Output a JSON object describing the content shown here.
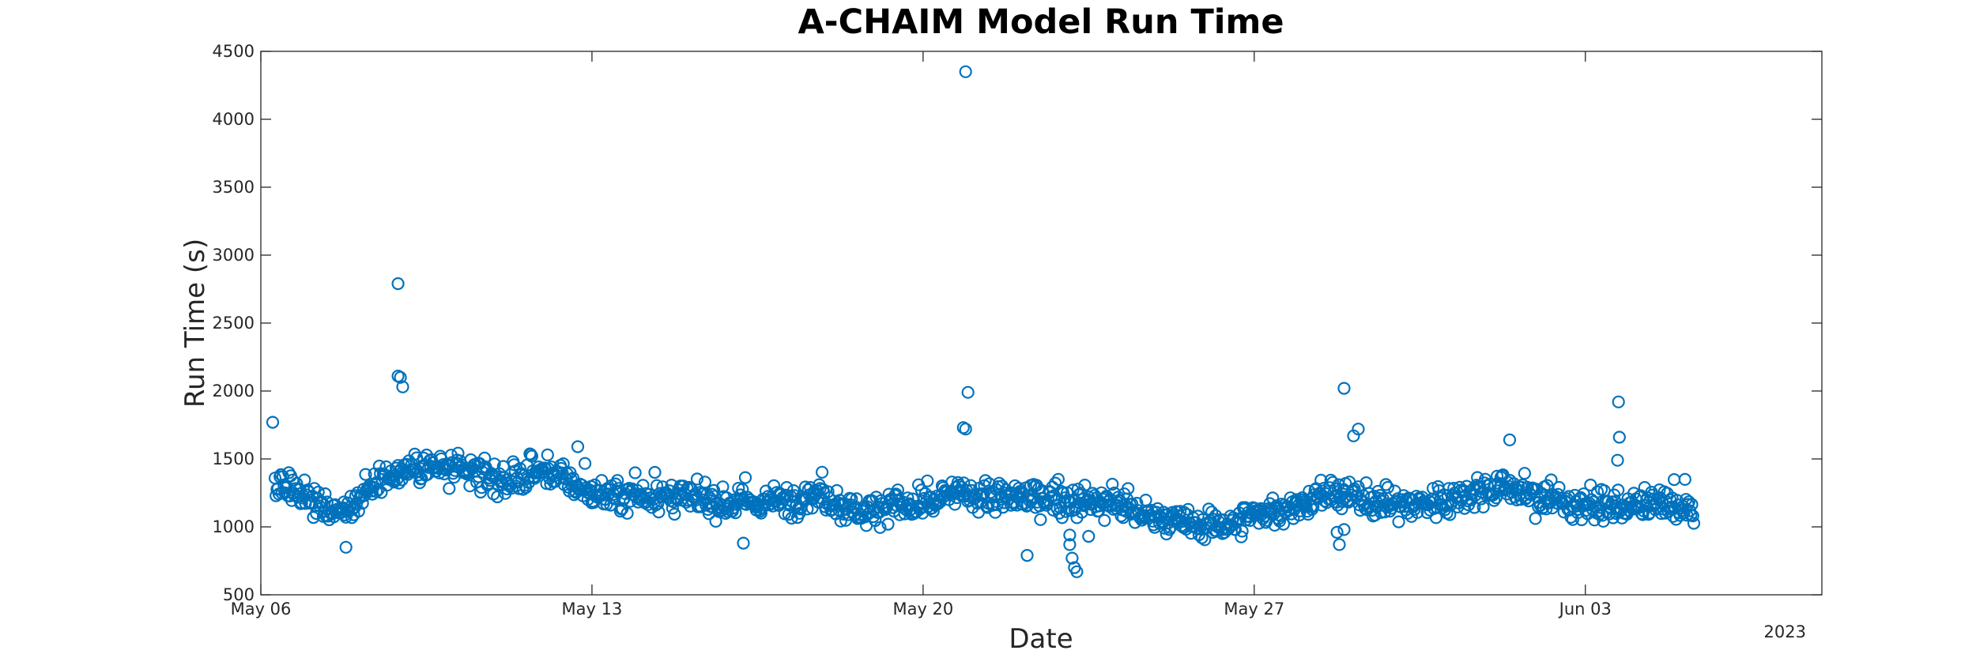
{
  "chart_data": {
    "type": "scatter",
    "title": "A-CHAIM Model Run Time",
    "xlabel": "Date",
    "ylabel": "Run Time (s)",
    "x_secondary_label": "2023",
    "x_unit": "days since May 06, 2023",
    "xlim": [
      0,
      33
    ],
    "ylim": [
      500,
      4500
    ],
    "x_ticks": [
      {
        "value": 0,
        "label": "May 06"
      },
      {
        "value": 7,
        "label": "May 13"
      },
      {
        "value": 14,
        "label": "May 20"
      },
      {
        "value": 21,
        "label": "May 27"
      },
      {
        "value": 28,
        "label": "Jun 03"
      }
    ],
    "y_ticks": [
      500,
      1000,
      1500,
      2000,
      2500,
      3000,
      3500,
      4000,
      4500
    ],
    "grid": false,
    "marker": "open-circle",
    "series_color": "#0072BD",
    "trend_anchors": [
      [
        0.3,
        1320
      ],
      [
        1.0,
        1200
      ],
      [
        1.5,
        1120
      ],
      [
        2.0,
        1160
      ],
      [
        2.6,
        1380
      ],
      [
        3.5,
        1450
      ],
      [
        4.5,
        1390
      ],
      [
        5.3,
        1330
      ],
      [
        6.0,
        1420
      ],
      [
        6.4,
        1360
      ],
      [
        6.8,
        1260
      ],
      [
        7.5,
        1220
      ],
      [
        8.2,
        1230
      ],
      [
        9.0,
        1210
      ],
      [
        10.0,
        1170
      ],
      [
        11.0,
        1190
      ],
      [
        11.8,
        1250
      ],
      [
        12.3,
        1150
      ],
      [
        12.8,
        1110
      ],
      [
        13.3,
        1170
      ],
      [
        14.0,
        1130
      ],
      [
        14.4,
        1220
      ],
      [
        14.8,
        1250
      ],
      [
        15.5,
        1210
      ],
      [
        16.5,
        1220
      ],
      [
        17.5,
        1180
      ],
      [
        18.0,
        1180
      ],
      [
        18.5,
        1110
      ],
      [
        19.5,
        1020
      ],
      [
        20.5,
        1020
      ],
      [
        21.0,
        1090
      ],
      [
        21.5,
        1130
      ],
      [
        22.0,
        1160
      ],
      [
        22.5,
        1240
      ],
      [
        23.0,
        1220
      ],
      [
        24.0,
        1160
      ],
      [
        25.0,
        1190
      ],
      [
        25.5,
        1250
      ],
      [
        26.3,
        1300
      ],
      [
        27.0,
        1220
      ],
      [
        27.5,
        1180
      ],
      [
        28.0,
        1170
      ],
      [
        28.5,
        1140
      ],
      [
        29.0,
        1150
      ],
      [
        29.5,
        1170
      ],
      [
        30.0,
        1140
      ],
      [
        30.3,
        1130
      ]
    ],
    "x_end": 30.3,
    "point_spacing_days": 0.0208,
    "noise_sd": 55,
    "outliers": [
      {
        "x": 2.9,
        "y": 2790
      },
      {
        "x": 2.9,
        "y": 2110
      },
      {
        "x": 2.95,
        "y": 2100
      },
      {
        "x": 3.0,
        "y": 2030
      },
      {
        "x": 0.25,
        "y": 1770
      },
      {
        "x": 14.9,
        "y": 4350
      },
      {
        "x": 14.95,
        "y": 1990
      },
      {
        "x": 14.85,
        "y": 1730
      },
      {
        "x": 14.9,
        "y": 1720
      },
      {
        "x": 22.9,
        "y": 2020
      },
      {
        "x": 23.2,
        "y": 1720
      },
      {
        "x": 23.1,
        "y": 1670
      },
      {
        "x": 28.7,
        "y": 1920
      },
      {
        "x": 28.72,
        "y": 1660
      },
      {
        "x": 28.68,
        "y": 1490
      },
      {
        "x": 26.4,
        "y": 1640
      },
      {
        "x": 6.7,
        "y": 1590
      },
      {
        "x": 1.8,
        "y": 850
      },
      {
        "x": 10.2,
        "y": 880
      },
      {
        "x": 16.2,
        "y": 790
      },
      {
        "x": 17.1,
        "y": 940
      },
      {
        "x": 17.1,
        "y": 870
      },
      {
        "x": 17.15,
        "y": 770
      },
      {
        "x": 17.2,
        "y": 700
      },
      {
        "x": 17.25,
        "y": 670
      },
      {
        "x": 17.5,
        "y": 930
      },
      {
        "x": 22.8,
        "y": 870
      },
      {
        "x": 22.75,
        "y": 960
      },
      {
        "x": 22.9,
        "y": 980
      }
    ]
  }
}
